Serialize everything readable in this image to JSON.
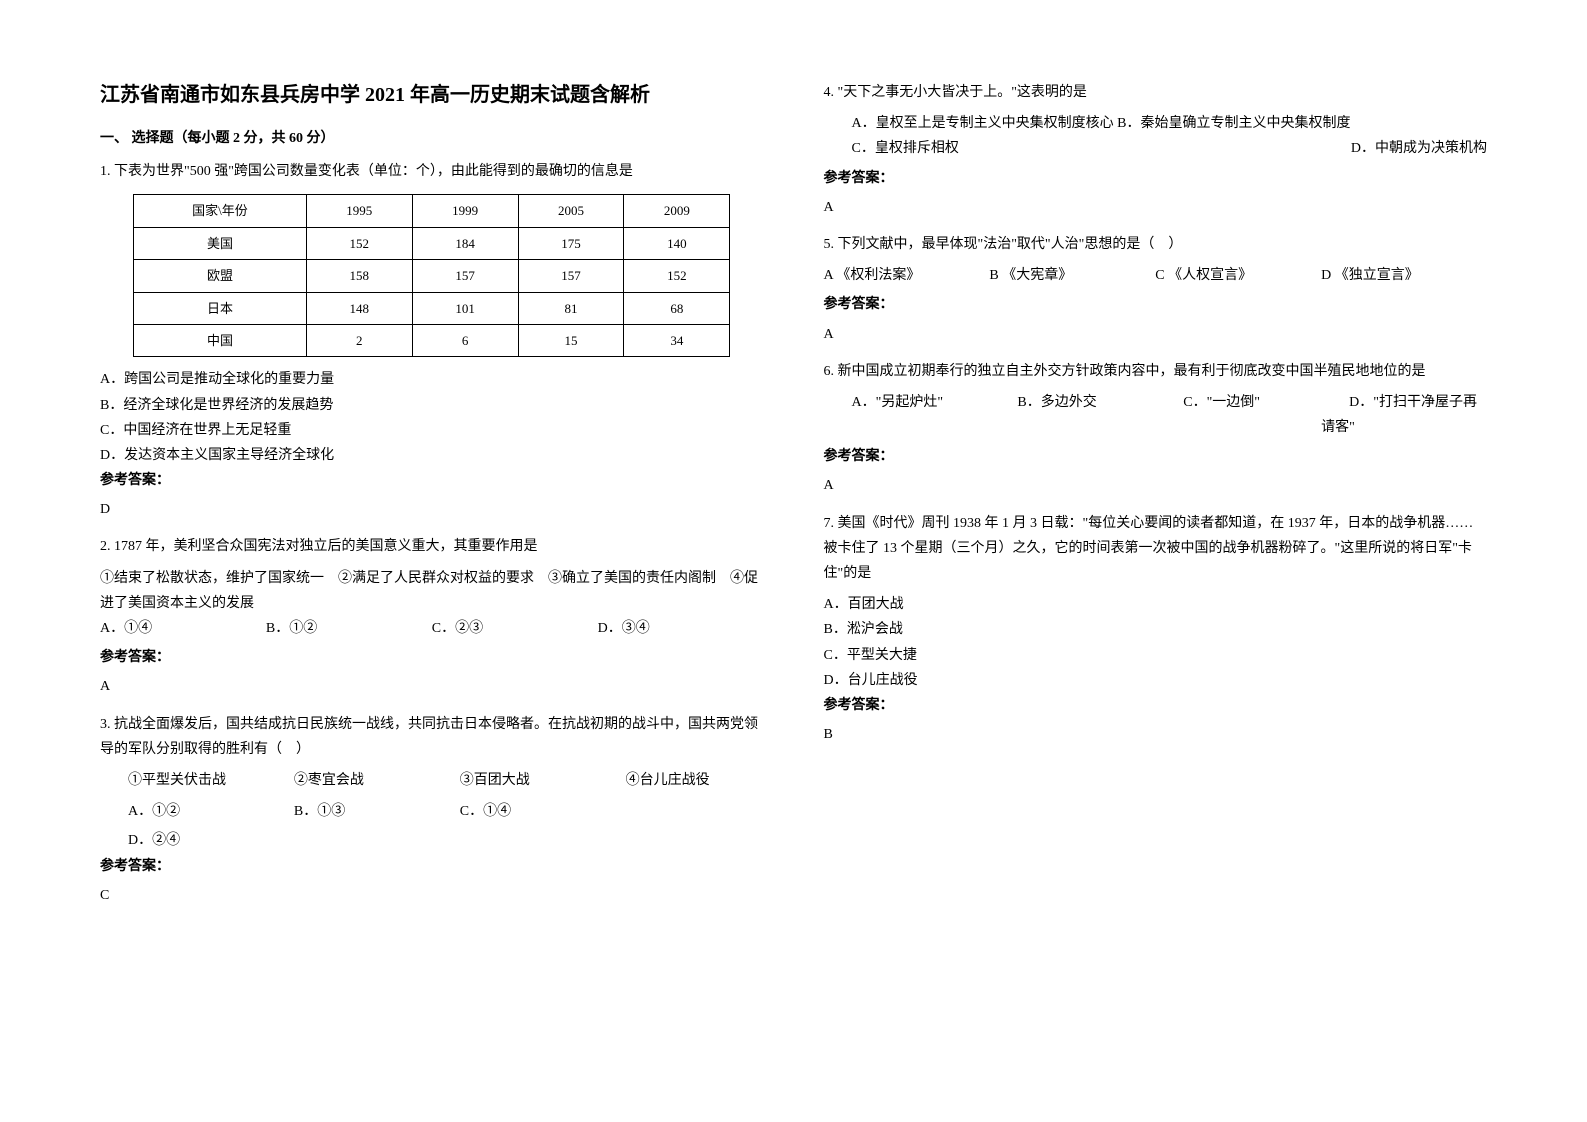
{
  "title": "江苏省南通市如东县兵房中学 2021 年高一历史期末试题含解析",
  "section1_heading": "一、 选择题（每小题 2 分，共 60 分）",
  "answer_label": "参考答案：",
  "q1": {
    "text": "1. 下表为世界\"500 强\"跨国公司数量变化表（单位：个），由此能得到的最确切的信息是",
    "table": {
      "header": [
        "国家\\年份",
        "1995",
        "1999",
        "2005",
        "2009"
      ],
      "rows": [
        [
          "美国",
          "152",
          "184",
          "175",
          "140"
        ],
        [
          "欧盟",
          "158",
          "157",
          "157",
          "152"
        ],
        [
          "日本",
          "148",
          "101",
          "81",
          "68"
        ],
        [
          "中国",
          "2",
          "6",
          "15",
          "34"
        ]
      ]
    },
    "optA": "A．跨国公司是推动全球化的重要力量",
    "optB": "B．经济全球化是世界经济的发展趋势",
    "optC": "C．中国经济在世界上无足轻重",
    "optD": "D．发达资本主义国家主导经济全球化",
    "answer": "D"
  },
  "q2": {
    "text": "2. 1787 年，美利坚合众国宪法对独立后的美国意义重大，其重要作用是",
    "line1": "①结束了松散状态，维护了国家统一　②满足了人民群众对权益的要求　③确立了美国的责任内阁制　④促进了美国资本主义的发展",
    "optA": "A．①④",
    "optB": "B．①②",
    "optC": "C．②③",
    "optD": "D．③④",
    "answer": "A"
  },
  "q3": {
    "text": "3. 抗战全面爆发后，国共结成抗日民族统一战线，共同抗击日本侵略者。在抗战初期的战斗中，国共两党领导的军队分别取得的胜利有（　）",
    "sub1": "①平型关伏击战",
    "sub2": "②枣宜会战",
    "sub3": "③百团大战",
    "sub4": "④台儿庄战役",
    "optA": "A．①②",
    "optB": "B．①③",
    "optC": "C．①④",
    "optD": "D．②④",
    "answer": "C"
  },
  "q4": {
    "text": "4. \"天下之事无小大皆决于上。\"这表明的是",
    "optA": "A．皇权至上是专制主义中央集权制度核心",
    "optB": "B．秦始皇确立专制主义中央集权制度",
    "optC": "C．皇权排斥相权",
    "optD": "D．中朝成为决策机构",
    "answer": "A"
  },
  "q5": {
    "text": "5. 下列文献中，最早体现\"法治\"取代\"人治\"思想的是（　）",
    "optA": "A 《权利法案》",
    "optB": "B 《大宪章》",
    "optC": "C 《人权宣言》",
    "optD": "D 《独立宣言》",
    "answer": "A"
  },
  "q6": {
    "text": "6. 新中国成立初期奉行的独立自主外交方针政策内容中，最有利于彻底改变中国半殖民地地位的是",
    "optA": "A．\"另起炉灶\"",
    "optB": "B．多边外交",
    "optC": "C．\"一边倒\"",
    "optD": "D．\"打扫干净屋子再请客\"",
    "answer": "A"
  },
  "q7": {
    "text": "7. 美国《时代》周刊 1938 年 1 月 3 日载：\"每位关心要闻的读者都知道，在 1937 年，日本的战争机器……被卡住了 13 个星期（三个月）之久，它的时间表第一次被中国的战争机器粉碎了。\"这里所说的将日军\"卡住\"的是",
    "optA": "A．百团大战",
    "optB": "B．淞沪会战",
    "optC": "C．平型关大捷",
    "optD": "D．台儿庄战役",
    "answer": "B"
  }
}
